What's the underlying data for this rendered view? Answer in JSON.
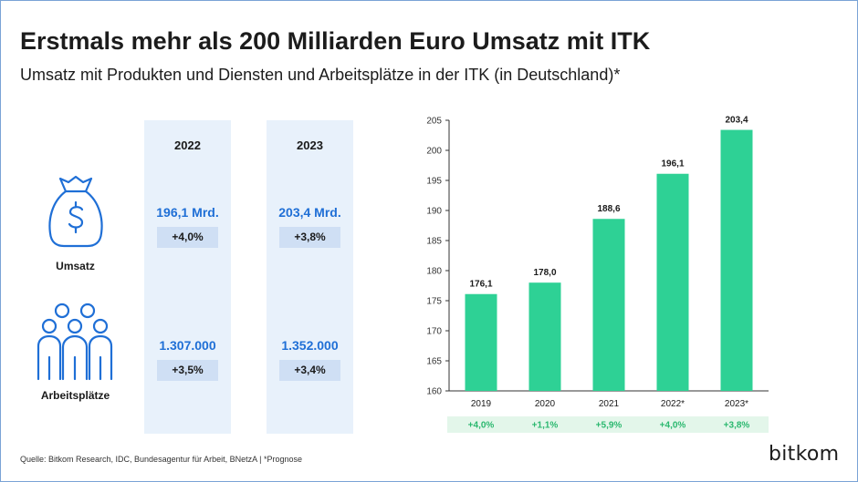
{
  "header": {
    "title": "Erstmals mehr als 200 Milliarden Euro Umsatz mit ITK",
    "subtitle": "Umsatz mit Produkten und Diensten und Arbeitsplätze in der ITK (in Deutschland)*"
  },
  "table": {
    "columns": [
      {
        "year": "2022",
        "revenue": "196,1 Mrd.",
        "revenue_change": "+4,0%",
        "jobs": "1.307.000",
        "jobs_change": "+3,5%"
      },
      {
        "year": "2023",
        "revenue": "203,4 Mrd.",
        "revenue_change": "+3,8%",
        "jobs": "1.352.000",
        "jobs_change": "+3,4%"
      }
    ],
    "row_labels": {
      "revenue": "Umsatz",
      "jobs": "Arbeitsplätze"
    },
    "icons": {
      "revenue": "money-bag-icon",
      "jobs": "people-group-icon"
    }
  },
  "chart_data": {
    "type": "bar",
    "categories": [
      "2019",
      "2020",
      "2021",
      "2022*",
      "2023*"
    ],
    "values": [
      176.1,
      178.0,
      188.6,
      196.1,
      203.4
    ],
    "value_labels": [
      "176,1",
      "178,0",
      "188,6",
      "196,1",
      "203,4"
    ],
    "growth_labels": [
      "+4,0%",
      "+1,1%",
      "+5,9%",
      "+4,0%",
      "+3,8%"
    ],
    "ylim": [
      160,
      205
    ],
    "yticks": [
      "160",
      "165",
      "170",
      "175",
      "180",
      "185",
      "190",
      "195",
      "200",
      "205"
    ],
    "title": "",
    "xlabel": "",
    "ylabel": "",
    "grid": false,
    "bar_color": "#2ed195",
    "growth_band_color": "#e3f6ea",
    "growth_text_color": "#2bb86f"
  },
  "footer": {
    "source": "Quelle: Bitkom Research, IDC, Bundesagentur für Arbeit, BNetzA | *Prognose",
    "brand": "bitkom"
  },
  "colors": {
    "accent_blue": "#1f6fd6",
    "column_bg": "#e8f1fb",
    "pill_bg": "#cfdff4"
  }
}
